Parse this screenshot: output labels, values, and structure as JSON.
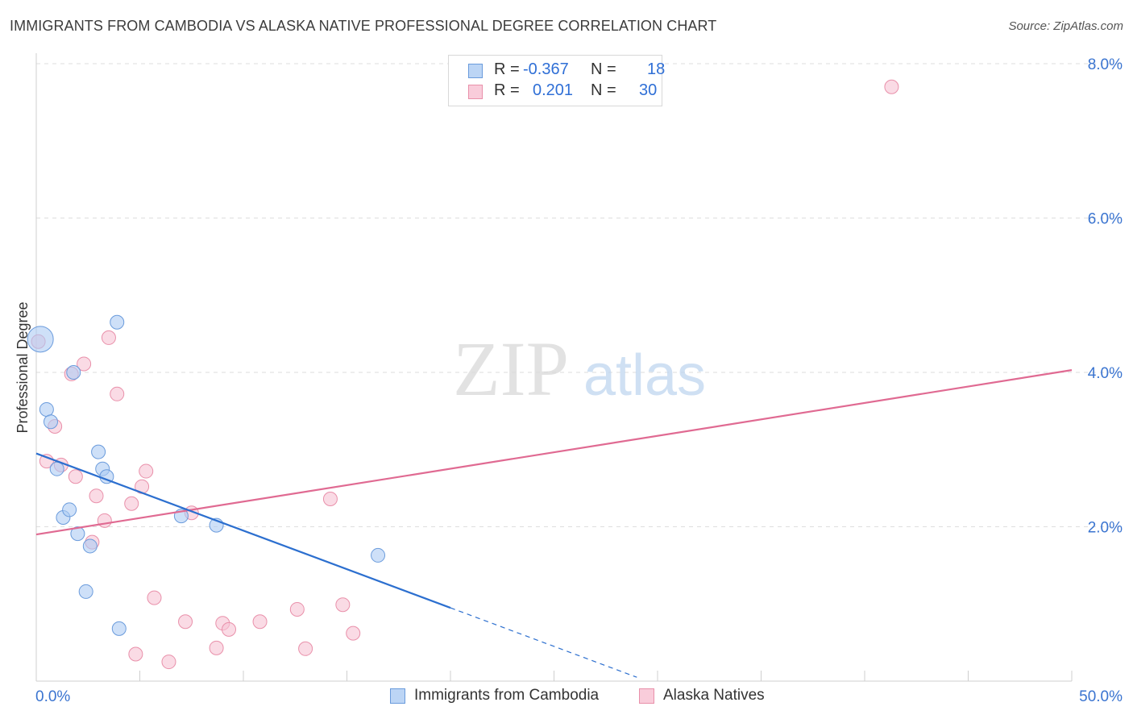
{
  "header": {
    "title": "IMMIGRANTS FROM CAMBODIA VS ALASKA NATIVE PROFESSIONAL DEGREE CORRELATION CHART",
    "source": "Source: ZipAtlas.com"
  },
  "watermark": {
    "zip": "ZIP",
    "atlas": "atlas"
  },
  "legend_top": {
    "rows": [
      {
        "r_label": "R =",
        "r_value": "-0.367",
        "n_label": "N =",
        "n_value": "18"
      },
      {
        "r_label": "R =",
        "r_value": "0.201",
        "n_label": "N =",
        "n_value": "30"
      }
    ]
  },
  "legend_bottom": {
    "items": [
      {
        "label": "Immigrants from Cambodia"
      },
      {
        "label": "Alaska Natives"
      }
    ]
  },
  "colors": {
    "blue_fill": "#aecbf3",
    "blue_stroke": "#6a9bdc",
    "blue_line": "#2c6fcf",
    "pink_fill": "#f7c3d3",
    "pink_stroke": "#e990aa",
    "pink_line": "#e06a92",
    "tick_label": "#3a74d0"
  },
  "chart_data": {
    "type": "scatter",
    "title": "IMMIGRANTS FROM CAMBODIA VS ALASKA NATIVE PROFESSIONAL DEGREE CORRELATION CHART",
    "xlabel": "",
    "ylabel": "Professional Degree",
    "xlim": [
      0,
      50
    ],
    "ylim": [
      0,
      8.0
    ],
    "x_tick_labels": [
      "0.0%",
      "50.0%"
    ],
    "y_ticks": [
      2.0,
      4.0,
      6.0,
      8.0
    ],
    "y_tick_labels": [
      "2.0%",
      "4.0%",
      "6.0%",
      "8.0%"
    ],
    "grid": true,
    "series": [
      {
        "name": "Immigrants from Cambodia",
        "color": "#aecbf3",
        "R": -0.367,
        "N": 18,
        "points": [
          {
            "x": 0.2,
            "y": 4.43,
            "big": true
          },
          {
            "x": 0.5,
            "y": 3.52
          },
          {
            "x": 0.7,
            "y": 3.36
          },
          {
            "x": 1.0,
            "y": 2.75
          },
          {
            "x": 1.3,
            "y": 2.12
          },
          {
            "x": 1.6,
            "y": 2.22
          },
          {
            "x": 1.8,
            "y": 4.0
          },
          {
            "x": 2.0,
            "y": 1.91
          },
          {
            "x": 2.4,
            "y": 1.16
          },
          {
            "x": 2.6,
            "y": 1.75
          },
          {
            "x": 3.0,
            "y": 2.97
          },
          {
            "x": 3.2,
            "y": 2.75
          },
          {
            "x": 3.4,
            "y": 2.65
          },
          {
            "x": 3.9,
            "y": 4.65
          },
          {
            "x": 4.0,
            "y": 0.68
          },
          {
            "x": 7.0,
            "y": 2.14
          },
          {
            "x": 8.7,
            "y": 2.02
          },
          {
            "x": 16.5,
            "y": 1.63
          }
        ],
        "trend": {
          "x0": 0,
          "y0": 2.95,
          "x1": 20,
          "y1": 0.95,
          "dash_to_x": 29,
          "dash_to_y": 0.05
        }
      },
      {
        "name": "Alaska Natives",
        "color": "#f7c3d3",
        "R": 0.201,
        "N": 30,
        "points": [
          {
            "x": 0.1,
            "y": 4.4
          },
          {
            "x": 0.5,
            "y": 2.85
          },
          {
            "x": 0.9,
            "y": 3.3
          },
          {
            "x": 1.2,
            "y": 2.8
          },
          {
            "x": 1.7,
            "y": 3.98
          },
          {
            "x": 1.9,
            "y": 2.65
          },
          {
            "x": 2.3,
            "y": 4.11
          },
          {
            "x": 2.7,
            "y": 1.8
          },
          {
            "x": 2.9,
            "y": 2.4
          },
          {
            "x": 3.3,
            "y": 2.08
          },
          {
            "x": 3.5,
            "y": 4.45
          },
          {
            "x": 3.9,
            "y": 3.72
          },
          {
            "x": 4.6,
            "y": 2.3
          },
          {
            "x": 4.8,
            "y": 0.35
          },
          {
            "x": 5.1,
            "y": 2.52
          },
          {
            "x": 5.3,
            "y": 2.72
          },
          {
            "x": 5.7,
            "y": 1.08
          },
          {
            "x": 6.4,
            "y": 0.25
          },
          {
            "x": 7.2,
            "y": 0.77
          },
          {
            "x": 7.5,
            "y": 2.18
          },
          {
            "x": 8.7,
            "y": 0.43
          },
          {
            "x": 9.0,
            "y": 0.75
          },
          {
            "x": 9.3,
            "y": 0.67
          },
          {
            "x": 10.8,
            "y": 0.77
          },
          {
            "x": 12.6,
            "y": 0.93
          },
          {
            "x": 13.0,
            "y": 0.42
          },
          {
            "x": 14.2,
            "y": 2.36
          },
          {
            "x": 14.8,
            "y": 0.99
          },
          {
            "x": 15.3,
            "y": 0.62
          },
          {
            "x": 41.3,
            "y": 7.7
          }
        ],
        "trend": {
          "x0": 0,
          "y0": 1.9,
          "x1": 50,
          "y1": 4.03
        }
      }
    ]
  }
}
